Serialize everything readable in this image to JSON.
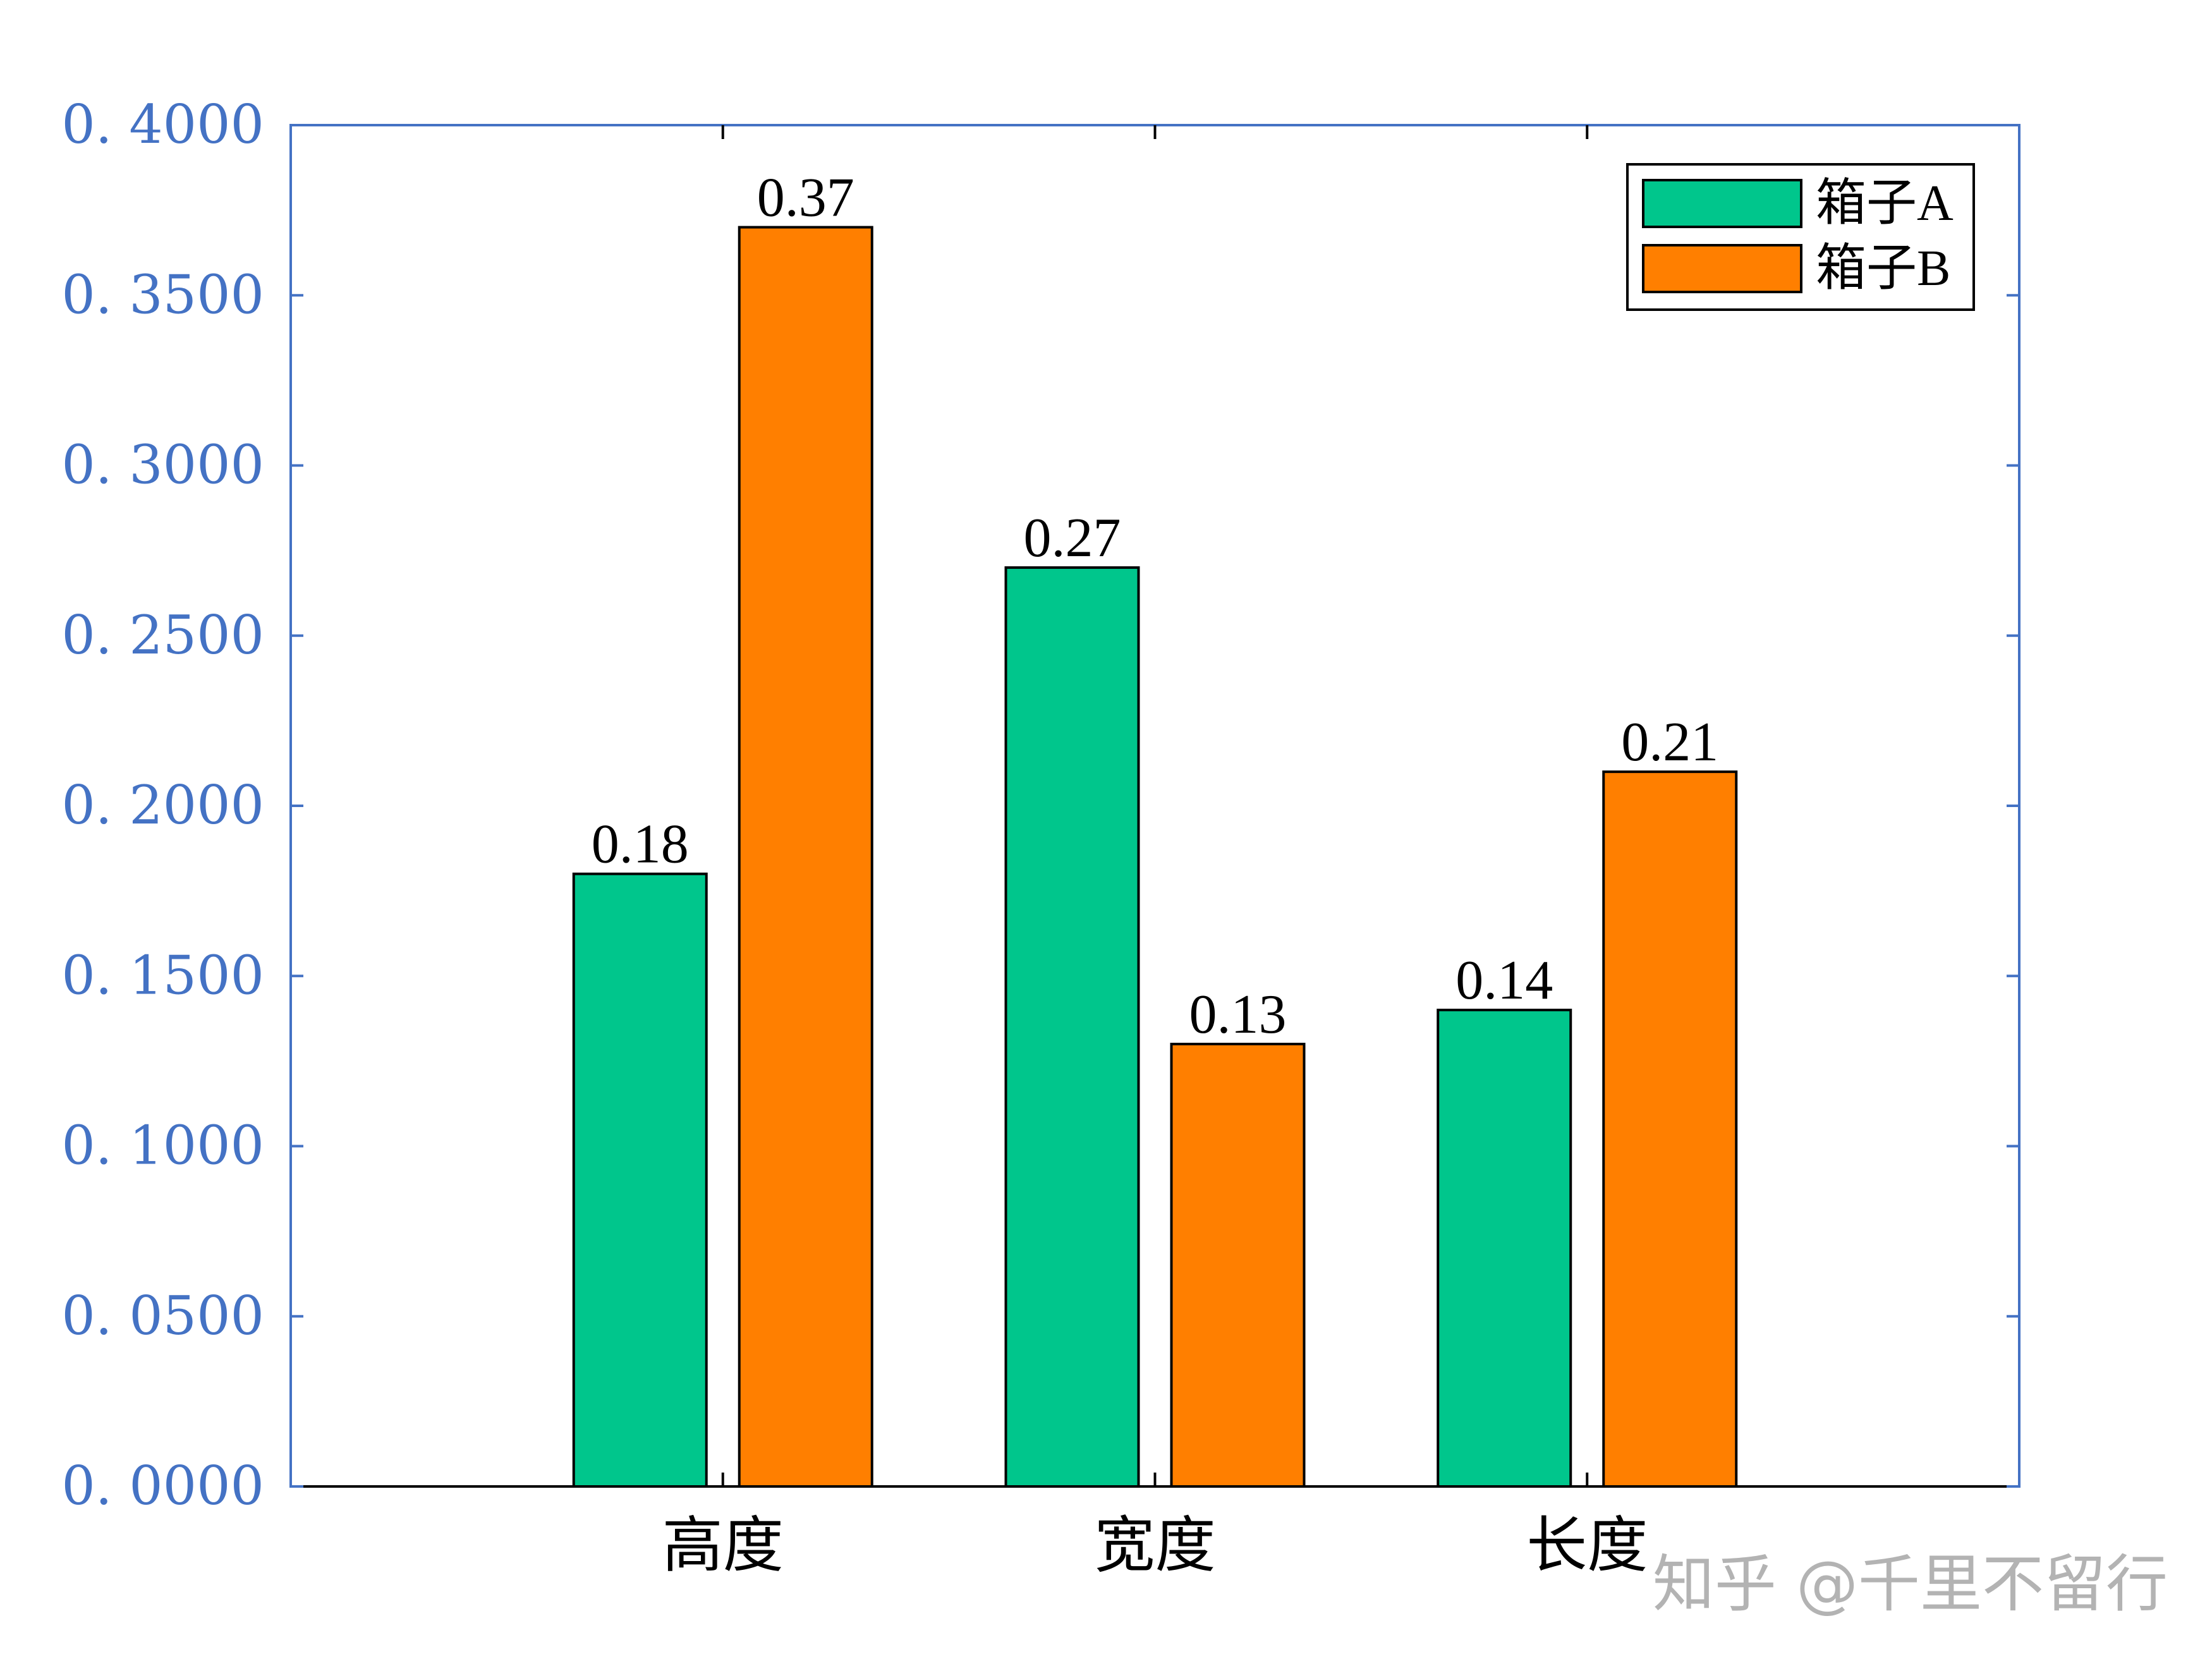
{
  "chart_data": {
    "type": "bar",
    "categories": [
      "高度",
      "宽度",
      "长度"
    ],
    "series": [
      {
        "name": "箱子A",
        "values": [
          0.18,
          0.27,
          0.14
        ],
        "color": "#00C68C",
        "labels": [
          "0.18",
          "0.27",
          "0.14"
        ]
      },
      {
        "name": "箱子B",
        "values": [
          0.37,
          0.13,
          0.21
        ],
        "color": "#FF7F00",
        "labels": [
          "0.37",
          "0.13",
          "0.21"
        ]
      }
    ],
    "ylim": [
      0,
      0.4
    ],
    "yticks": [
      0,
      0.05,
      0.1,
      0.15,
      0.2,
      0.25,
      0.3,
      0.35,
      0.4
    ],
    "ytick_labels": [
      "0. 0000",
      "0. 0500",
      "0. 1000",
      "0. 1500",
      "0. 2000",
      "0. 2500",
      "0. 3000",
      "0. 3500",
      "0. 4000"
    ],
    "xlabel": "",
    "ylabel": "",
    "title": "",
    "grid": false,
    "legend_position": "top-right",
    "axis_color": "#4472C4"
  },
  "watermark": "知乎 @千里不留行"
}
